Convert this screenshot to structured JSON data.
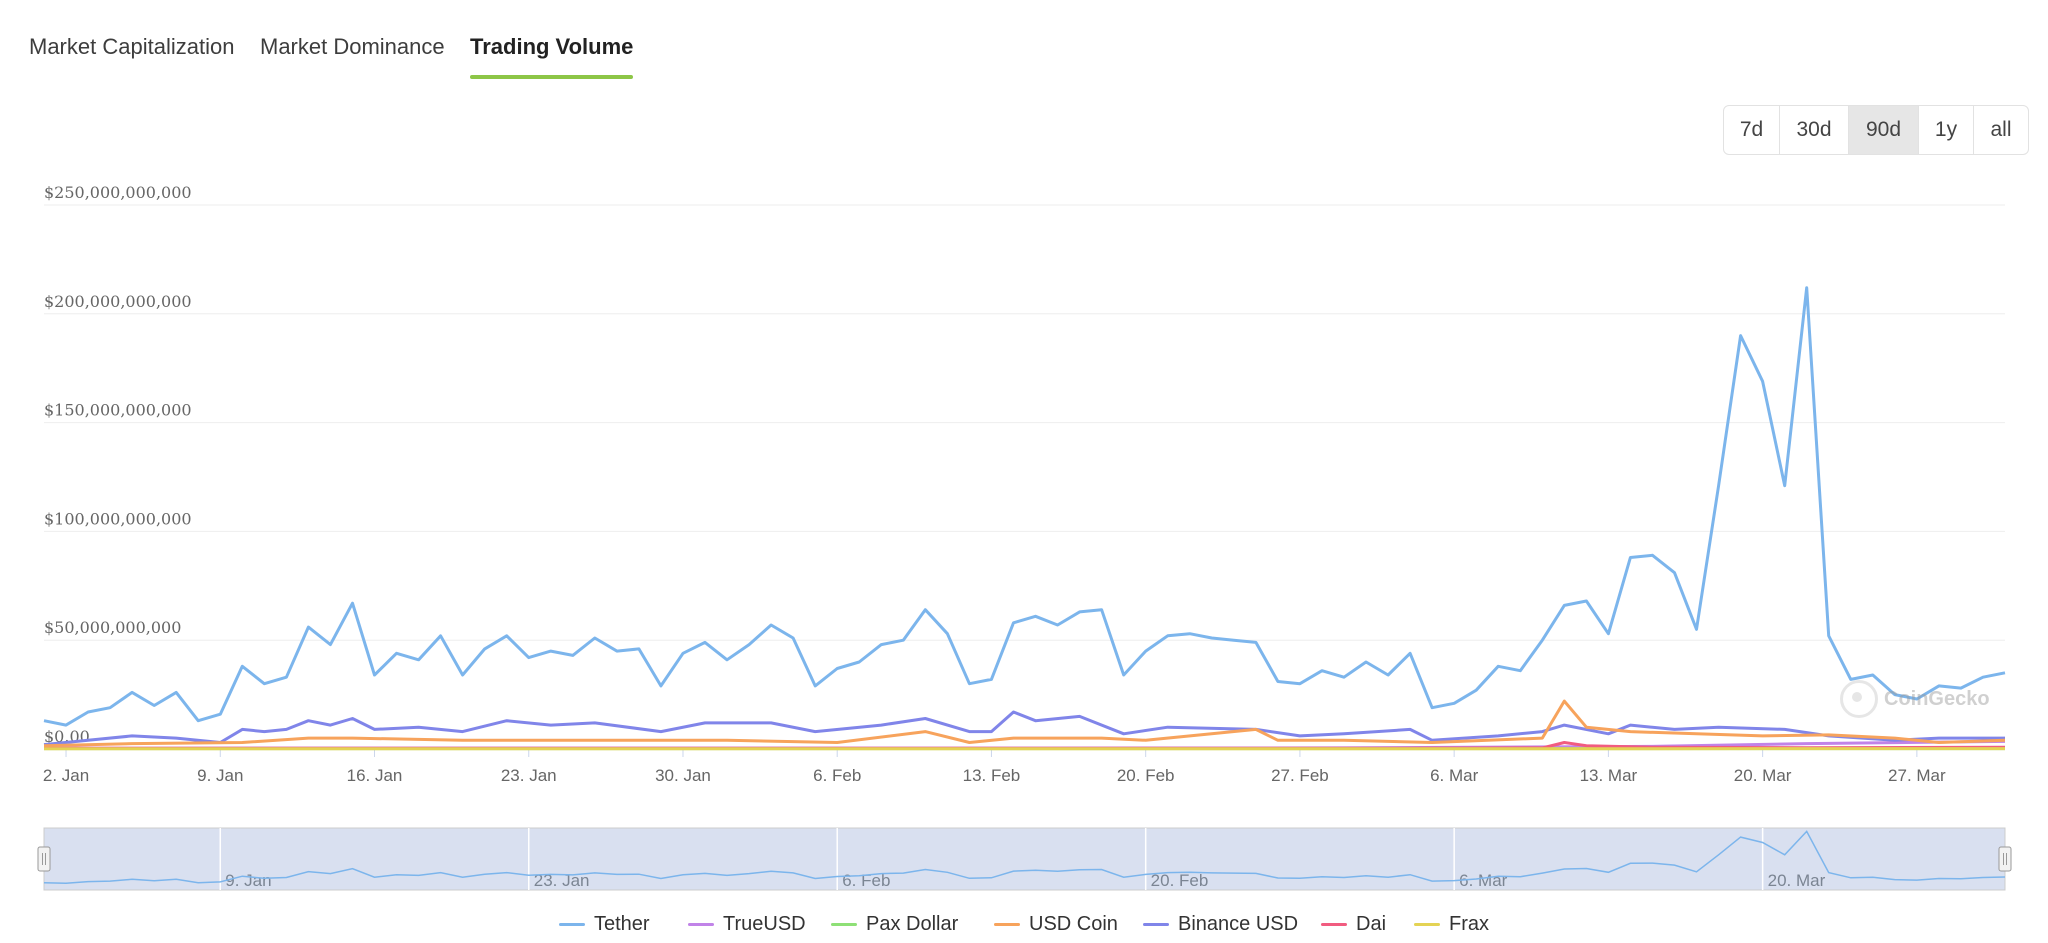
{
  "tabs": [
    {
      "label": "Market Capitalization",
      "active": false
    },
    {
      "label": "Market Dominance",
      "active": false
    },
    {
      "label": "Trading Volume",
      "active": true
    }
  ],
  "ranges": [
    {
      "label": "7d",
      "active": false
    },
    {
      "label": "30d",
      "active": false
    },
    {
      "label": "90d",
      "active": true
    },
    {
      "label": "1y",
      "active": false
    },
    {
      "label": "all",
      "active": false
    }
  ],
  "watermark": "CoinGecko",
  "chart_data": {
    "type": "line",
    "title": "",
    "xlabel": "",
    "ylabel": "",
    "ylim": [
      0,
      250000000000
    ],
    "yticks": [
      {
        "value": 0,
        "label": "$0.00"
      },
      {
        "value": 50000000000,
        "label": "$50,000,000,000"
      },
      {
        "value": 100000000000,
        "label": "$100,000,000,000"
      },
      {
        "value": 150000000000,
        "label": "$150,000,000,000"
      },
      {
        "value": 200000000000,
        "label": "$200,000,000,000"
      },
      {
        "value": 250000000000,
        "label": "$250,000,000,000"
      }
    ],
    "x_start": "2023-01-01",
    "x_end": "2023-03-31",
    "xticks": [
      {
        "date": "2023-01-02",
        "label": "2. Jan"
      },
      {
        "date": "2023-01-09",
        "label": "9. Jan"
      },
      {
        "date": "2023-01-16",
        "label": "16. Jan"
      },
      {
        "date": "2023-01-23",
        "label": "23. Jan"
      },
      {
        "date": "2023-01-30",
        "label": "30. Jan"
      },
      {
        "date": "2023-02-06",
        "label": "6. Feb"
      },
      {
        "date": "2023-02-13",
        "label": "13. Feb"
      },
      {
        "date": "2023-02-20",
        "label": "20. Feb"
      },
      {
        "date": "2023-02-27",
        "label": "27. Feb"
      },
      {
        "date": "2023-03-06",
        "label": "6. Mar"
      },
      {
        "date": "2023-03-13",
        "label": "13. Mar"
      },
      {
        "date": "2023-03-20",
        "label": "20. Mar"
      },
      {
        "date": "2023-03-27",
        "label": "27. Mar"
      }
    ],
    "navigator_ticks": [
      {
        "date": "2023-01-09",
        "label": "9. Jan"
      },
      {
        "date": "2023-01-23",
        "label": "23. Jan"
      },
      {
        "date": "2023-02-06",
        "label": "6. Feb"
      },
      {
        "date": "2023-02-20",
        "label": "20. Feb"
      },
      {
        "date": "2023-03-06",
        "label": "6. Mar"
      },
      {
        "date": "2023-03-20",
        "label": "20. Mar"
      }
    ],
    "grid": true,
    "legend_position": "bottom",
    "series": [
      {
        "name": "Tether",
        "color": "#7cb5ec",
        "points": [
          [
            "2023-01-01",
            13000000000.0
          ],
          [
            "2023-01-02",
            11000000000.0
          ],
          [
            "2023-01-03",
            17000000000.0
          ],
          [
            "2023-01-04",
            19000000000.0
          ],
          [
            "2023-01-05",
            26000000000.0
          ],
          [
            "2023-01-06",
            20000000000.0
          ],
          [
            "2023-01-07",
            26000000000.0
          ],
          [
            "2023-01-08",
            13000000000.0
          ],
          [
            "2023-01-09",
            16000000000.0
          ],
          [
            "2023-01-10",
            38000000000.0
          ],
          [
            "2023-01-11",
            30000000000.0
          ],
          [
            "2023-01-12",
            33000000000.0
          ],
          [
            "2023-01-13",
            56000000000.0
          ],
          [
            "2023-01-14",
            48000000000.0
          ],
          [
            "2023-01-15",
            67000000000.0
          ],
          [
            "2023-01-16",
            34000000000.0
          ],
          [
            "2023-01-17",
            44000000000.0
          ],
          [
            "2023-01-18",
            41000000000.0
          ],
          [
            "2023-01-19",
            52000000000.0
          ],
          [
            "2023-01-20",
            34000000000.0
          ],
          [
            "2023-01-21",
            46000000000.0
          ],
          [
            "2023-01-22",
            52000000000.0
          ],
          [
            "2023-01-23",
            42000000000.0
          ],
          [
            "2023-01-24",
            45000000000.0
          ],
          [
            "2023-01-25",
            43000000000.0
          ],
          [
            "2023-01-26",
            51000000000.0
          ],
          [
            "2023-01-27",
            45000000000.0
          ],
          [
            "2023-01-28",
            46000000000.0
          ],
          [
            "2023-01-29",
            29000000000.0
          ],
          [
            "2023-01-30",
            44000000000.0
          ],
          [
            "2023-01-31",
            49000000000.0
          ],
          [
            "2023-02-01",
            41000000000.0
          ],
          [
            "2023-02-02",
            48000000000.0
          ],
          [
            "2023-02-03",
            57000000000.0
          ],
          [
            "2023-02-04",
            51000000000.0
          ],
          [
            "2023-02-05",
            29000000000.0
          ],
          [
            "2023-02-06",
            37000000000.0
          ],
          [
            "2023-02-07",
            40000000000.0
          ],
          [
            "2023-02-08",
            48000000000.0
          ],
          [
            "2023-02-09",
            50000000000.0
          ],
          [
            "2023-02-10",
            64000000000.0
          ],
          [
            "2023-02-11",
            53000000000.0
          ],
          [
            "2023-02-12",
            30000000000.0
          ],
          [
            "2023-02-13",
            32000000000.0
          ],
          [
            "2023-02-14",
            58000000000.0
          ],
          [
            "2023-02-15",
            61000000000.0
          ],
          [
            "2023-02-16",
            57000000000.0
          ],
          [
            "2023-02-17",
            63000000000.0
          ],
          [
            "2023-02-18",
            64000000000.0
          ],
          [
            "2023-02-19",
            34000000000.0
          ],
          [
            "2023-02-20",
            45000000000.0
          ],
          [
            "2023-02-21",
            52000000000.0
          ],
          [
            "2023-02-22",
            53000000000.0
          ],
          [
            "2023-02-23",
            51000000000.0
          ],
          [
            "2023-02-24",
            50000000000.0
          ],
          [
            "2023-02-25",
            49000000000.0
          ],
          [
            "2023-02-26",
            31000000000.0
          ],
          [
            "2023-02-27",
            30000000000.0
          ],
          [
            "2023-02-28",
            36000000000.0
          ],
          [
            "2023-03-01",
            33000000000.0
          ],
          [
            "2023-03-02",
            40000000000.0
          ],
          [
            "2023-03-03",
            34000000000.0
          ],
          [
            "2023-03-04",
            44000000000.0
          ],
          [
            "2023-03-05",
            19000000000.0
          ],
          [
            "2023-03-06",
            21000000000.0
          ],
          [
            "2023-03-07",
            27000000000.0
          ],
          [
            "2023-03-08",
            38000000000.0
          ],
          [
            "2023-03-09",
            36000000000.0
          ],
          [
            "2023-03-10",
            50000000000.0
          ],
          [
            "2023-03-11",
            66000000000.0
          ],
          [
            "2023-03-12",
            68000000000.0
          ],
          [
            "2023-03-13",
            53000000000.0
          ],
          [
            "2023-03-14",
            88000000000.0
          ],
          [
            "2023-03-15",
            89000000000.0
          ],
          [
            "2023-03-16",
            81000000000.0
          ],
          [
            "2023-03-17",
            55000000000.0
          ],
          [
            "2023-03-18",
            121000000000.0
          ],
          [
            "2023-03-19",
            190000000000.0
          ],
          [
            "2023-03-20",
            169000000000.0
          ],
          [
            "2023-03-21",
            121000000000.0
          ],
          [
            "2023-03-22",
            212000000000.0
          ],
          [
            "2023-03-23",
            52000000000.0
          ],
          [
            "2023-03-24",
            32000000000.0
          ],
          [
            "2023-03-25",
            34000000000.0
          ],
          [
            "2023-03-26",
            25000000000.0
          ],
          [
            "2023-03-27",
            23000000000.0
          ],
          [
            "2023-03-28",
            29000000000.0
          ],
          [
            "2023-03-29",
            28000000000.0
          ],
          [
            "2023-03-30",
            33000000000.0
          ],
          [
            "2023-03-31",
            35000000000.0
          ]
        ]
      },
      {
        "name": "TrueUSD",
        "color": "#c183e8",
        "points": [
          [
            "2023-01-01",
            300000000.0
          ],
          [
            "2023-01-15",
            400000000.0
          ],
          [
            "2023-02-01",
            400000000.0
          ],
          [
            "2023-02-15",
            400000000.0
          ],
          [
            "2023-03-01",
            500000000.0
          ],
          [
            "2023-03-15",
            1200000000.0
          ],
          [
            "2023-03-22",
            2500000000.0
          ],
          [
            "2023-03-31",
            3500000000.0
          ]
        ]
      },
      {
        "name": "Pax Dollar",
        "color": "#8ee076",
        "points": [
          [
            "2023-01-01",
            200000000.0
          ],
          [
            "2023-02-01",
            200000000.0
          ],
          [
            "2023-03-01",
            200000000.0
          ],
          [
            "2023-03-31",
            200000000.0
          ]
        ]
      },
      {
        "name": "USD Coin",
        "color": "#f7a35c",
        "points": [
          [
            "2023-01-01",
            1500000000.0
          ],
          [
            "2023-01-05",
            2500000000.0
          ],
          [
            "2023-01-10",
            3000000000.0
          ],
          [
            "2023-01-13",
            5000000000.0
          ],
          [
            "2023-01-15",
            5000000000.0
          ],
          [
            "2023-01-20",
            4000000000.0
          ],
          [
            "2023-01-25",
            4000000000.0
          ],
          [
            "2023-02-01",
            4000000000.0
          ],
          [
            "2023-02-06",
            3000000000.0
          ],
          [
            "2023-02-10",
            8000000000.0
          ],
          [
            "2023-02-12",
            3000000000.0
          ],
          [
            "2023-02-14",
            5000000000.0
          ],
          [
            "2023-02-18",
            5000000000.0
          ],
          [
            "2023-02-20",
            4000000000.0
          ],
          [
            "2023-02-25",
            9000000000.0
          ],
          [
            "2023-02-26",
            4000000000.0
          ],
          [
            "2023-03-01",
            4000000000.0
          ],
          [
            "2023-03-05",
            3000000000.0
          ],
          [
            "2023-03-10",
            5000000000.0
          ],
          [
            "2023-03-11",
            22000000000.0
          ],
          [
            "2023-03-12",
            10000000000.0
          ],
          [
            "2023-03-14",
            8000000000.0
          ],
          [
            "2023-03-17",
            7000000000.0
          ],
          [
            "2023-03-20",
            6000000000.0
          ],
          [
            "2023-03-23",
            6500000000.0
          ],
          [
            "2023-03-26",
            5000000000.0
          ],
          [
            "2023-03-28",
            3000000000.0
          ],
          [
            "2023-03-31",
            4000000000.0
          ]
        ]
      },
      {
        "name": "Binance USD",
        "color": "#8085e9",
        "points": [
          [
            "2023-01-01",
            2000000000.0
          ],
          [
            "2023-01-03",
            4000000000.0
          ],
          [
            "2023-01-05",
            6000000000.0
          ],
          [
            "2023-01-07",
            5000000000.0
          ],
          [
            "2023-01-09",
            3000000000.0
          ],
          [
            "2023-01-10",
            9000000000.0
          ],
          [
            "2023-01-11",
            8000000000.0
          ],
          [
            "2023-01-12",
            9000000000.0
          ],
          [
            "2023-01-13",
            13000000000.0
          ],
          [
            "2023-01-14",
            11000000000.0
          ],
          [
            "2023-01-15",
            14000000000.0
          ],
          [
            "2023-01-16",
            9000000000.0
          ],
          [
            "2023-01-18",
            10000000000.0
          ],
          [
            "2023-01-20",
            8000000000.0
          ],
          [
            "2023-01-22",
            13000000000.0
          ],
          [
            "2023-01-24",
            11000000000.0
          ],
          [
            "2023-01-26",
            12000000000.0
          ],
          [
            "2023-01-29",
            8000000000.0
          ],
          [
            "2023-01-31",
            12000000000.0
          ],
          [
            "2023-02-03",
            12000000000.0
          ],
          [
            "2023-02-05",
            8000000000.0
          ],
          [
            "2023-02-08",
            11000000000.0
          ],
          [
            "2023-02-10",
            14000000000.0
          ],
          [
            "2023-02-12",
            8000000000.0
          ],
          [
            "2023-02-13",
            8000000000.0
          ],
          [
            "2023-02-14",
            17000000000.0
          ],
          [
            "2023-02-15",
            13000000000.0
          ],
          [
            "2023-02-17",
            15000000000.0
          ],
          [
            "2023-02-19",
            7000000000.0
          ],
          [
            "2023-02-21",
            10000000000.0
          ],
          [
            "2023-02-25",
            9000000000.0
          ],
          [
            "2023-02-27",
            6000000000.0
          ],
          [
            "2023-03-01",
            7000000000.0
          ],
          [
            "2023-03-04",
            9000000000.0
          ],
          [
            "2023-03-05",
            4000000000.0
          ],
          [
            "2023-03-08",
            6000000000.0
          ],
          [
            "2023-03-10",
            8000000000.0
          ],
          [
            "2023-03-11",
            11000000000.0
          ],
          [
            "2023-03-13",
            7000000000.0
          ],
          [
            "2023-03-14",
            11000000000.0
          ],
          [
            "2023-03-16",
            9000000000.0
          ],
          [
            "2023-03-18",
            10000000000.0
          ],
          [
            "2023-03-21",
            9000000000.0
          ],
          [
            "2023-03-23",
            6000000000.0
          ],
          [
            "2023-03-26",
            4000000000.0
          ],
          [
            "2023-03-28",
            5000000000.0
          ],
          [
            "2023-03-31",
            5000000000.0
          ]
        ]
      },
      {
        "name": "Dai",
        "color": "#f15c80",
        "points": [
          [
            "2023-01-01",
            300000000.0
          ],
          [
            "2023-02-01",
            300000000.0
          ],
          [
            "2023-03-01",
            300000000.0
          ],
          [
            "2023-03-10",
            500000000.0
          ],
          [
            "2023-03-11",
            3000000000.0
          ],
          [
            "2023-03-12",
            1500000000.0
          ],
          [
            "2023-03-15",
            800000000.0
          ],
          [
            "2023-03-22",
            600000000.0
          ],
          [
            "2023-03-31",
            800000000.0
          ]
        ]
      },
      {
        "name": "Frax",
        "color": "#e4d354",
        "points": [
          [
            "2023-01-01",
            100000000.0
          ],
          [
            "2023-02-01",
            100000000.0
          ],
          [
            "2023-03-01",
            100000000.0
          ],
          [
            "2023-03-31",
            200000000.0
          ]
        ]
      }
    ]
  }
}
